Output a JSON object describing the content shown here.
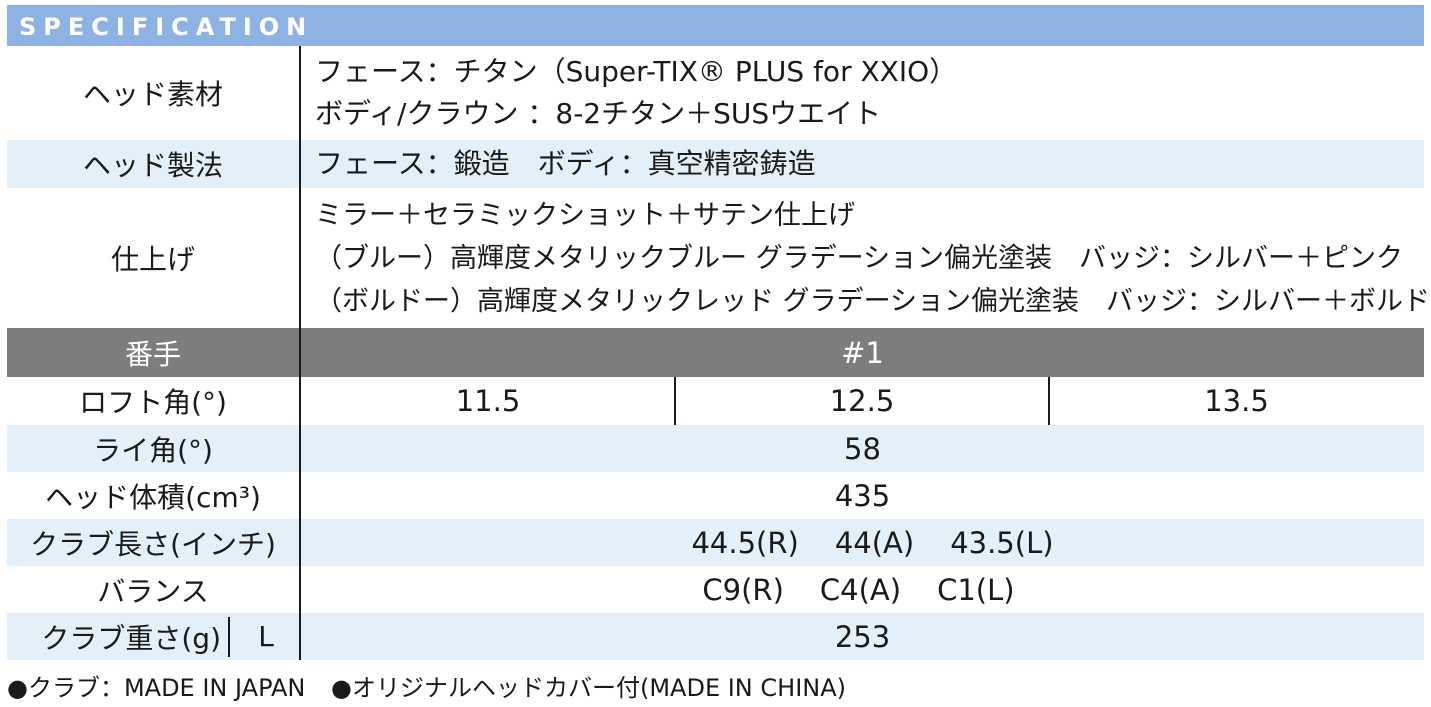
{
  "header": {
    "title": "SPECIFICATION"
  },
  "spec": {
    "head_material": {
      "label": "ヘッド素材",
      "lines": [
        "フェース：チタン（Super-TIX® PLUS for XXIO）",
        "ボディ/クラウン ：8-2チタン＋SUSウエイト"
      ]
    },
    "head_method": {
      "label": "ヘッド製法",
      "value": "フェース：鍛造　ボディ：真空精密鋳造"
    },
    "finish": {
      "label": "仕上げ",
      "lines": [
        "ミラー＋セラミックショット＋サテン仕上げ",
        "（ブルー）高輝度メタリックブルー グラデーション偏光塗装　バッジ：シルバー＋ピンク",
        "（ボルドー）高輝度メタリックレッド グラデーション偏光塗装　バッジ：シルバー＋ボルドー"
      ]
    }
  },
  "table": {
    "number": {
      "label": "番手",
      "value": "#1"
    },
    "loft": {
      "label": "ロフト角(°)",
      "values": [
        "11.5",
        "12.5",
        "13.5"
      ]
    },
    "lie": {
      "label": "ライ角(°)",
      "value": "58"
    },
    "volume": {
      "label": "ヘッド体積(cm³)",
      "value": "435"
    },
    "length": {
      "label": "クラブ長さ(インチ)",
      "values": [
        "44.5(R)",
        "44(A)",
        "43.5(L)"
      ]
    },
    "balance": {
      "label": "バランス",
      "values": [
        "C9(R)",
        "C4(A)",
        "C1(L)"
      ]
    },
    "weight": {
      "label": "クラブ重さ(g)",
      "sublabel": "L",
      "value": "253"
    }
  },
  "footer": {
    "note1": "●クラブ：MADE IN JAPAN",
    "note2": "●オリジナルヘッドカバー付(MADE IN CHINA)"
  },
  "colors": {
    "header_bg": "#8eb2e2",
    "stripe_bg": "#e3f0fa",
    "number_row_bg": "#7d7d7d"
  }
}
